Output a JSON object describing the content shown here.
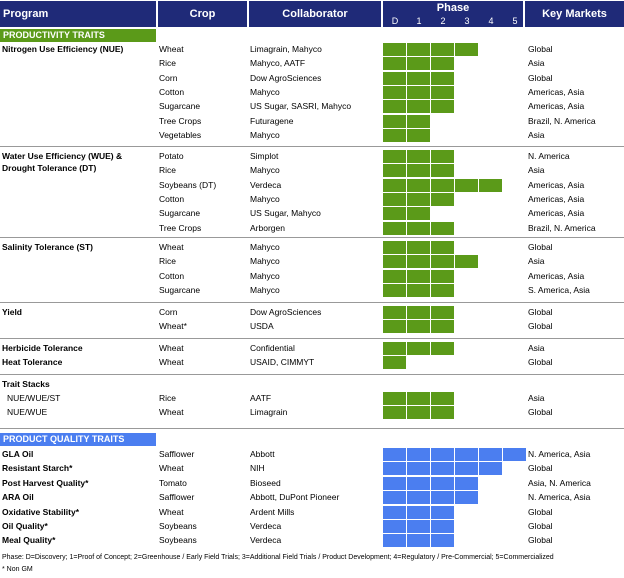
{
  "colors": {
    "header": "#1f2a78",
    "productivity": "#5b9a19",
    "quality": "#4b7ef0"
  },
  "header": {
    "program": "Program",
    "crop": "Crop",
    "collaborator": "Collaborator",
    "phase": "Phase",
    "phase_labels": [
      "D",
      "1",
      "2",
      "3",
      "4",
      "5"
    ],
    "markets": "Key Markets"
  },
  "sections": {
    "productivity": "PRODUCTIVITY TRAITS",
    "quality": "PRODUCT QUALITY TRAITS"
  },
  "productivity_groups": [
    {
      "program": [
        "Nitrogen Use Efficiency (NUE)"
      ],
      "rows": [
        {
          "crop": "Wheat",
          "collab": "Limagrain, Mahyco",
          "market": "Global",
          "phase": 3
        },
        {
          "crop": "Rice",
          "collab": "Mahyco, AATF",
          "market": "Asia",
          "phase": 2
        },
        {
          "crop": "Corn",
          "collab": "Dow AgroSciences",
          "market": "Global",
          "phase": 2
        },
        {
          "crop": "Cotton",
          "collab": "Mahyco",
          "market": "Americas, Asia",
          "phase": 2
        },
        {
          "crop": "Sugarcane",
          "collab": "US Sugar, SASRI, Mahyco",
          "market": "Americas, Asia",
          "phase": 2
        },
        {
          "crop": "Tree Crops",
          "collab": "Futuragene",
          "market": "Brazil, N. America",
          "phase": 1
        },
        {
          "crop": "Vegetables",
          "collab": "Mahyco",
          "market": "Asia",
          "phase": 1
        }
      ]
    },
    {
      "program": [
        "Water Use Efficiency (WUE) &",
        "Drought Tolerance (DT)"
      ],
      "rows": [
        {
          "crop": "Potato",
          "collab": "Simplot",
          "market": "N. America",
          "phase": 2
        },
        {
          "crop": "Rice",
          "collab": "Mahyco",
          "market": "Asia",
          "phase": 2
        },
        {
          "crop": "Soybeans (DT)",
          "collab": "Verdeca",
          "market": "Americas, Asia",
          "phase": 4
        },
        {
          "crop": "Cotton",
          "collab": "Mahyco",
          "market": "Americas, Asia",
          "phase": 2
        },
        {
          "crop": "Sugarcane",
          "collab": "US Sugar, Mahyco",
          "market": "Americas, Asia",
          "phase": 1
        },
        {
          "crop": "Tree Crops",
          "collab": "Arborgen",
          "market": "Brazil, N. America",
          "phase": 2
        }
      ]
    },
    {
      "program": [
        "Salinity Tolerance (ST)"
      ],
      "rows": [
        {
          "crop": "Wheat",
          "collab": "Mahyco",
          "market": "Global",
          "phase": 2
        },
        {
          "crop": "Rice",
          "collab": "Mahyco",
          "market": "Asia",
          "phase": 3
        },
        {
          "crop": "Cotton",
          "collab": "Mahyco",
          "market": "Americas, Asia",
          "phase": 2
        },
        {
          "crop": "Sugarcane",
          "collab": "Mahyco",
          "market": "S. America, Asia",
          "phase": 2
        }
      ]
    },
    {
      "program": [
        "Yield"
      ],
      "rows": [
        {
          "crop": "Corn",
          "collab": "Dow AgroSciences",
          "market": "Global",
          "phase": 2
        },
        {
          "crop": "Wheat*",
          "collab": "USDA",
          "market": "Global",
          "phase": 2
        }
      ]
    },
    {
      "program": [
        "Herbicide Tolerance"
      ],
      "rows": [
        {
          "crop": "Wheat",
          "collab": "Confidential",
          "market": "Asia",
          "phase": 2
        }
      ]
    },
    {
      "program": [
        "Heat Tolerance"
      ],
      "rows": [
        {
          "crop": "Wheat",
          "collab": "USAID, CIMMYT",
          "market": "Global",
          "phase": 0
        }
      ]
    },
    {
      "program": [
        "Trait Stacks"
      ],
      "rows": []
    },
    {
      "program": [
        "NUE/WUE/ST"
      ],
      "plain": true,
      "rows": [
        {
          "crop": "Rice",
          "collab": "AATF",
          "market": "Asia",
          "phase": 2
        }
      ]
    },
    {
      "program": [
        "NUE/WUE"
      ],
      "plain": true,
      "rows": [
        {
          "crop": "Wheat",
          "collab": "Limagrain",
          "market": "Global",
          "phase": 2
        }
      ]
    }
  ],
  "quality_rows": [
    {
      "program": "GLA Oil",
      "crop": "Safflower",
      "collab": "Abbott",
      "market": "N. America, Asia",
      "phase": 5
    },
    {
      "program": "Resistant Starch*",
      "crop": "Wheat",
      "collab": "NIH",
      "market": "Global",
      "phase": 4
    },
    {
      "program": "Post Harvest Quality*",
      "crop": "Tomato",
      "collab": "Bioseed",
      "market": "Asia, N. America",
      "phase": 3
    },
    {
      "program": "ARA Oil",
      "crop": "Safflower",
      "collab": "Abbott, DuPont Pioneer",
      "market": "N. America, Asia",
      "phase": 3
    },
    {
      "program": "Oxidative Stability*",
      "crop": "Wheat",
      "collab": "Ardent Mills",
      "market": "Global",
      "phase": 2
    },
    {
      "program": "Oil Quality*",
      "crop": "Soybeans",
      "collab": "Verdeca",
      "market": "Global",
      "phase": 2
    },
    {
      "program": "Meal Quality*",
      "crop": "Soybeans",
      "collab": "Verdeca",
      "market": "Global",
      "phase": 2
    }
  ],
  "footnotes": [
    "Phase: D=Discovery; 1=Proof of Concept; 2=Greenhouse / Early Field Trials; 3=Additional Field Trials / Product Development; 4=Regulatory / Pre-Commercial; 5=Commercialized",
    "* Non GM"
  ]
}
